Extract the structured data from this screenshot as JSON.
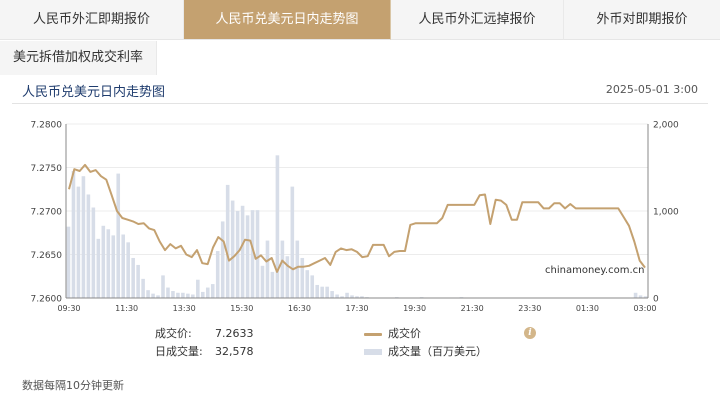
{
  "tabs": [
    {
      "label": "人民币外汇即期报价"
    },
    {
      "label": "人民币兑美元日内走势图"
    },
    {
      "label": "人民币外汇远掉报价"
    },
    {
      "label": "外币对即期报价"
    }
  ],
  "tab_secondary": {
    "label": "美元拆借加权成交利率"
  },
  "header": {
    "title": "人民币兑美元日内走势图",
    "timestamp": "2025-05-01 3:00"
  },
  "watermark": "chinamoney.com.cn",
  "legend": {
    "price_label": "成交价:",
    "price_value": "7.2633",
    "volume_label": "日成交量:",
    "volume_value": "32,578",
    "series_price": "成交价",
    "series_volume": "成交量（百万美元）"
  },
  "footnote": "数据每隔10分钟更新",
  "colors": {
    "price_line": "#c4a170",
    "volume_bar": "#d7dde8",
    "accent": "#c4a170"
  },
  "chart_data": {
    "type": "line",
    "x_ticks": [
      "09:30",
      "11:30",
      "13:30",
      "15:30",
      "16:30",
      "17:30",
      "19:30",
      "21:30",
      "23:30",
      "01:30",
      "03:00"
    ],
    "y_left": {
      "min": 7.26,
      "max": 7.28,
      "ticks": [
        "7.2600",
        "7.2650",
        "7.2700",
        "7.2750",
        "7.2800"
      ]
    },
    "y_right": {
      "min": 0,
      "max": 2000,
      "ticks": [
        "0",
        "1,000",
        "2,000"
      ]
    },
    "grid": "horizontal",
    "volume_bar_count": 117,
    "series": [
      {
        "name": "成交价",
        "axis": "left",
        "points": [
          [
            0,
            7.2725
          ],
          [
            1,
            7.2748
          ],
          [
            2,
            7.2746
          ],
          [
            3,
            7.2753
          ],
          [
            4,
            7.2745
          ],
          [
            5,
            7.2747
          ],
          [
            6,
            7.274
          ],
          [
            7,
            7.2736
          ],
          [
            8,
            7.2718
          ],
          [
            9,
            7.27
          ],
          [
            10,
            7.2692
          ],
          [
            11,
            7.269
          ],
          [
            12,
            7.2688
          ],
          [
            13,
            7.2685
          ],
          [
            14,
            7.2686
          ],
          [
            15,
            7.268
          ],
          [
            16,
            7.2678
          ],
          [
            17,
            7.2665
          ],
          [
            18,
            7.2655
          ],
          [
            19,
            7.2662
          ],
          [
            20,
            7.2657
          ],
          [
            21,
            7.266
          ],
          [
            22,
            7.265
          ],
          [
            23,
            7.2647
          ],
          [
            24,
            7.2655
          ],
          [
            25,
            7.264
          ],
          [
            26,
            7.2639
          ],
          [
            27,
            7.2658
          ],
          [
            28,
            7.267
          ],
          [
            29,
            7.2665
          ],
          [
            30,
            7.2643
          ],
          [
            31,
            7.2648
          ],
          [
            32,
            7.2655
          ],
          [
            33,
            7.2667
          ],
          [
            34,
            7.2666
          ],
          [
            35,
            7.2645
          ],
          [
            36,
            7.2649
          ],
          [
            37,
            7.2642
          ],
          [
            38,
            7.2646
          ],
          [
            39,
            7.263
          ],
          [
            40,
            7.2643
          ],
          [
            41,
            7.2637
          ],
          [
            42,
            7.2633
          ],
          [
            43,
            7.2636
          ],
          [
            44,
            7.2636
          ],
          [
            45,
            7.2637
          ],
          [
            46,
            7.264
          ],
          [
            47,
            7.2643
          ],
          [
            48,
            7.2646
          ],
          [
            49,
            7.2638
          ],
          [
            50,
            7.2653
          ],
          [
            51,
            7.2657
          ],
          [
            52,
            7.2655
          ],
          [
            53,
            7.2656
          ],
          [
            54,
            7.2653
          ],
          [
            55,
            7.2647
          ],
          [
            56,
            7.2648
          ],
          [
            57,
            7.2661
          ],
          [
            58,
            7.2661
          ],
          [
            59,
            7.2661
          ],
          [
            60,
            7.2648
          ],
          [
            61,
            7.2653
          ],
          [
            62,
            7.2654
          ],
          [
            63,
            7.2654
          ],
          [
            64,
            7.2684
          ],
          [
            65,
            7.2686
          ],
          [
            66,
            7.2686
          ],
          [
            67,
            7.2686
          ],
          [
            68,
            7.2686
          ],
          [
            69,
            7.2686
          ],
          [
            70,
            7.2692
          ],
          [
            71,
            7.2707
          ],
          [
            72,
            7.2707
          ],
          [
            73,
            7.2707
          ],
          [
            74,
            7.2707
          ],
          [
            75,
            7.2707
          ],
          [
            76,
            7.2707
          ],
          [
            77,
            7.2718
          ],
          [
            78,
            7.2719
          ],
          [
            79,
            7.2685
          ],
          [
            80,
            7.2713
          ],
          [
            81,
            7.2712
          ],
          [
            82,
            7.2707
          ],
          [
            83,
            7.269
          ],
          [
            84,
            7.269
          ],
          [
            85,
            7.271
          ],
          [
            86,
            7.271
          ],
          [
            87,
            7.271
          ],
          [
            88,
            7.271
          ],
          [
            89,
            7.2703
          ],
          [
            90,
            7.2703
          ],
          [
            91,
            7.2709
          ],
          [
            92,
            7.2709
          ],
          [
            93,
            7.2703
          ],
          [
            94,
            7.2708
          ],
          [
            95,
            7.2703
          ],
          [
            96,
            7.2703
          ],
          [
            97,
            7.2703
          ],
          [
            98,
            7.2703
          ],
          [
            99,
            7.2703
          ],
          [
            100,
            7.2703
          ],
          [
            101,
            7.2703
          ],
          [
            102,
            7.2703
          ],
          [
            103,
            7.2703
          ],
          [
            104,
            7.2693
          ],
          [
            105,
            7.2683
          ],
          [
            106,
            7.2665
          ],
          [
            107,
            7.2643
          ],
          [
            108,
            7.2635
          ]
        ]
      },
      {
        "name": "成交量（百万美元）",
        "axis": "right",
        "bars": [
          [
            0,
            820
          ],
          [
            1,
            1460
          ],
          [
            2,
            1280
          ],
          [
            3,
            1400
          ],
          [
            4,
            1190
          ],
          [
            5,
            1040
          ],
          [
            6,
            680
          ],
          [
            7,
            830
          ],
          [
            8,
            790
          ],
          [
            9,
            720
          ],
          [
            10,
            1430
          ],
          [
            11,
            730
          ],
          [
            12,
            640
          ],
          [
            13,
            460
          ],
          [
            14,
            380
          ],
          [
            15,
            220
          ],
          [
            16,
            90
          ],
          [
            17,
            50
          ],
          [
            18,
            30
          ],
          [
            19,
            260
          ],
          [
            20,
            120
          ],
          [
            21,
            80
          ],
          [
            22,
            60
          ],
          [
            23,
            60
          ],
          [
            24,
            50
          ],
          [
            25,
            40
          ],
          [
            26,
            210
          ],
          [
            27,
            70
          ],
          [
            28,
            120
          ],
          [
            29,
            160
          ],
          [
            30,
            540
          ],
          [
            31,
            880
          ],
          [
            32,
            1300
          ],
          [
            33,
            1120
          ],
          [
            34,
            1000
          ],
          [
            35,
            1060
          ],
          [
            36,
            950
          ],
          [
            37,
            1010
          ],
          [
            38,
            1010
          ],
          [
            39,
            370
          ],
          [
            40,
            660
          ],
          [
            41,
            300
          ],
          [
            42,
            1640
          ],
          [
            43,
            660
          ],
          [
            44,
            480
          ],
          [
            45,
            1280
          ],
          [
            46,
            660
          ],
          [
            47,
            460
          ],
          [
            48,
            320
          ],
          [
            49,
            260
          ],
          [
            50,
            150
          ],
          [
            51,
            130
          ],
          [
            52,
            130
          ],
          [
            53,
            80
          ],
          [
            54,
            40
          ],
          [
            55,
            20
          ],
          [
            56,
            60
          ],
          [
            57,
            30
          ],
          [
            58,
            20
          ],
          [
            59,
            20
          ],
          [
            60,
            10
          ],
          [
            61,
            5
          ],
          [
            62,
            5
          ],
          [
            63,
            5
          ],
          [
            64,
            5
          ],
          [
            65,
            5
          ],
          [
            66,
            10
          ],
          [
            67,
            5
          ],
          [
            68,
            5
          ],
          [
            69,
            5
          ],
          [
            70,
            5
          ],
          [
            71,
            10
          ],
          [
            72,
            5
          ],
          [
            73,
            5
          ],
          [
            74,
            5
          ],
          [
            75,
            5
          ],
          [
            76,
            5
          ],
          [
            77,
            5
          ],
          [
            78,
            5
          ],
          [
            79,
            10
          ],
          [
            80,
            5
          ],
          [
            81,
            5
          ],
          [
            82,
            5
          ],
          [
            83,
            5
          ],
          [
            84,
            5
          ],
          [
            85,
            5
          ],
          [
            86,
            5
          ],
          [
            87,
            5
          ],
          [
            88,
            5
          ],
          [
            89,
            5
          ],
          [
            90,
            5
          ],
          [
            91,
            5
          ],
          [
            92,
            5
          ],
          [
            93,
            5
          ],
          [
            94,
            5
          ],
          [
            95,
            5
          ],
          [
            96,
            5
          ],
          [
            97,
            5
          ],
          [
            98,
            5
          ],
          [
            99,
            5
          ],
          [
            100,
            5
          ],
          [
            101,
            5
          ],
          [
            102,
            5
          ],
          [
            103,
            5
          ],
          [
            104,
            5
          ],
          [
            105,
            5
          ],
          [
            106,
            5
          ],
          [
            107,
            5
          ],
          [
            108,
            5
          ],
          [
            109,
            5
          ],
          [
            110,
            5
          ],
          [
            111,
            5
          ],
          [
            112,
            5
          ],
          [
            113,
            5
          ],
          [
            114,
            60
          ],
          [
            115,
            30
          ],
          [
            116,
            20
          ]
        ]
      }
    ]
  }
}
